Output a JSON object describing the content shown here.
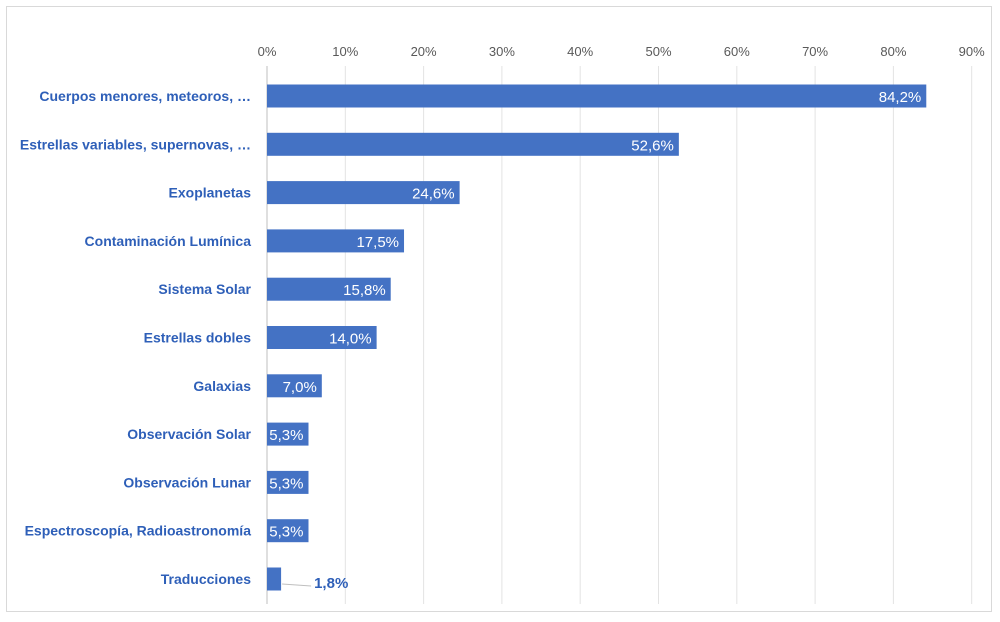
{
  "chart_data": {
    "type": "bar",
    "orientation": "horizontal",
    "title": "",
    "xlabel": "",
    "ylabel": "",
    "xlim": [
      0,
      90
    ],
    "ticks": [
      "0%",
      "10%",
      "20%",
      "30%",
      "40%",
      "50%",
      "60%",
      "70%",
      "80%",
      "90%"
    ],
    "grid": true,
    "bar_color": "#4472c4",
    "category_color": "#2e5fb8",
    "categories": [
      "Cuerpos menores, meteoros, …",
      "Estrellas variables, supernovas, …",
      "Exoplanetas",
      "Contaminación Lumínica",
      "Sistema Solar",
      "Estrellas dobles",
      "Galaxias",
      "Observación Solar",
      "Observación Lunar",
      "Espectroscopía, Radioastronomía",
      "Traducciones"
    ],
    "values": [
      84.2,
      52.6,
      24.6,
      17.5,
      15.8,
      14.0,
      7.0,
      5.3,
      5.3,
      5.3,
      1.8
    ],
    "labels": [
      "84,2%",
      "52,6%",
      "24,6%",
      "17,5%",
      "15,8%",
      "14,0%",
      "7,0%",
      "5,3%",
      "5,3%",
      "5,3%",
      "1,8%"
    ]
  }
}
